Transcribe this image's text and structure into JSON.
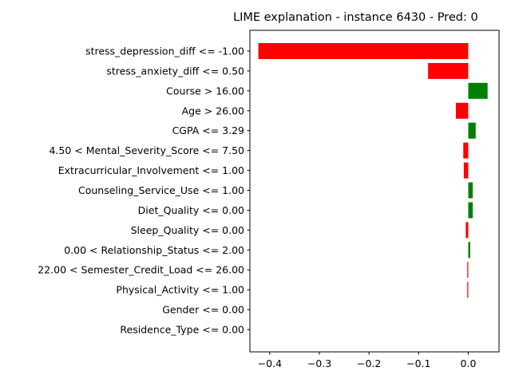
{
  "chart_data": {
    "type": "bar",
    "orientation": "horizontal",
    "title": "LIME explanation - instance 6430 - Pred: 0",
    "xlabel": "",
    "ylabel": "",
    "categories": [
      "stress_depression_diff <= -1.00",
      "stress_anxiety_diff <= 0.50",
      "Course > 16.00",
      "Age > 26.00",
      "CGPA <= 3.29",
      "4.50 < Mental_Severity_Score <= 7.50",
      "Extracurricular_Involvement <= 1.00",
      "Counseling_Service_Use <= 1.00",
      "Diet_Quality <= 0.00",
      "Sleep_Quality <= 0.00",
      "0.00 < Relationship_Status <= 2.00",
      "22.00 < Semester_Credit_Load <= 26.00",
      "Physical_Activity <= 1.00",
      "Gender <= 0.00",
      "Residence_Type <= 0.00"
    ],
    "values": [
      -0.423,
      -0.081,
      0.039,
      -0.025,
      0.015,
      -0.01,
      -0.009,
      0.009,
      0.009,
      -0.005,
      0.004,
      -0.002,
      -0.002,
      0.0,
      0.0
    ],
    "xlim": [
      -0.44,
      0.062
    ],
    "xticks": [
      -0.4,
      -0.3,
      -0.2,
      -0.1,
      0.0
    ],
    "xtick_labels": [
      "−0.4",
      "−0.3",
      "−0.2",
      "−0.1",
      "0.0"
    ],
    "colors": {
      "positive": "#008000",
      "negative": "#ff0000"
    },
    "grid": false,
    "legend": "none"
  }
}
